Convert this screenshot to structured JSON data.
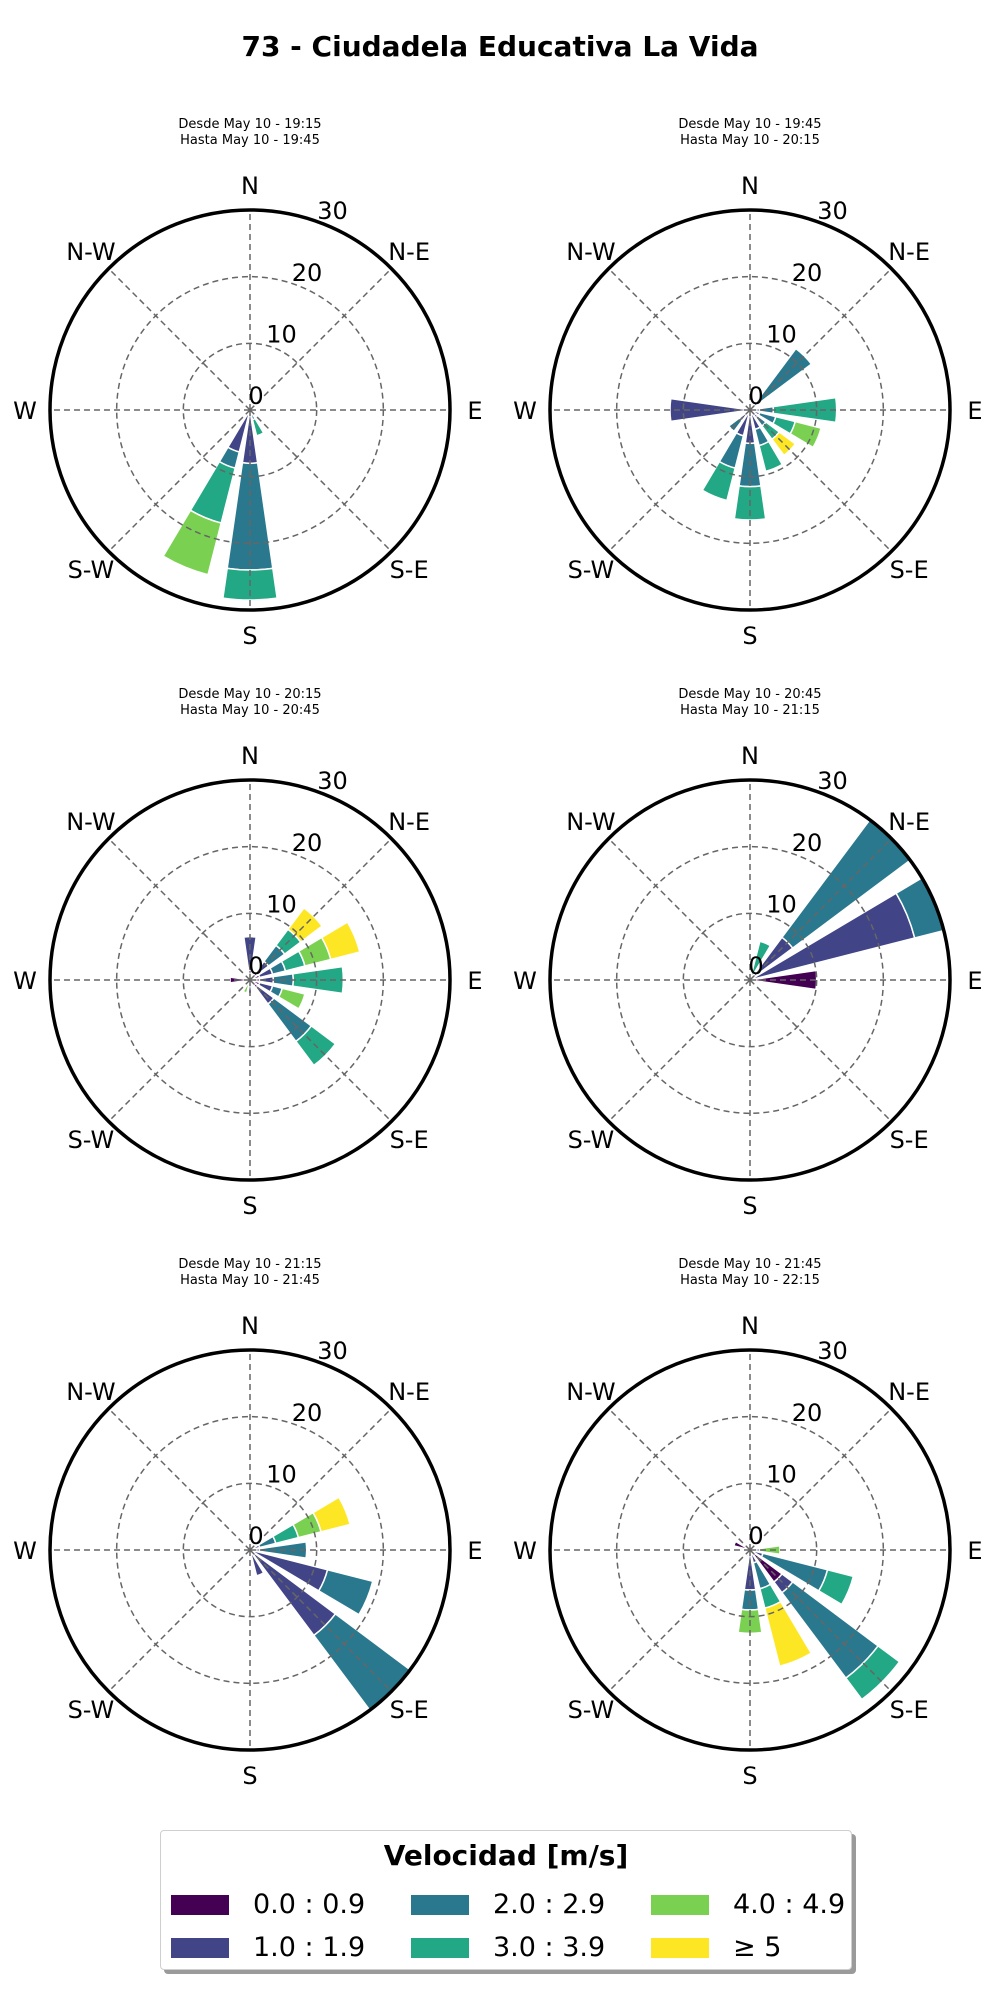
{
  "title": "73 - Ciudadela Educativa La Vida",
  "legend": {
    "title": "Velocidad [m/s]",
    "items": [
      {
        "label": "0.0 : 0.9",
        "color": "#440154"
      },
      {
        "label": "1.0 : 1.9",
        "color": "#414487"
      },
      {
        "label": "2.0 : 2.9",
        "color": "#2a788e"
      },
      {
        "label": "3.0 : 3.9",
        "color": "#22a884"
      },
      {
        "label": "4.0 : 4.9",
        "color": "#7ad151"
      },
      {
        "label": "≥ 5",
        "color": "#fde725"
      }
    ]
  },
  "chart_data": [
    {
      "type": "windrose",
      "subtitle": [
        "Desde May 10 - 19:15",
        "Hasta May 10 - 19:45"
      ],
      "direction_labels": [
        "N",
        "N-E",
        "E",
        "S-E",
        "S",
        "S-W",
        "W",
        "N-W"
      ],
      "radial_ticks": [
        0,
        10,
        20,
        30
      ],
      "rmax": 30,
      "bins": [
        "0.0 : 0.9",
        "1.0 : 1.9",
        "2.0 : 2.9",
        "3.0 : 3.9",
        "4.0 : 4.9",
        "≥ 5"
      ],
      "sectors": [
        {
          "direction": 157.5,
          "values": [
            0,
            0,
            1.5,
            2.5,
            0,
            0
          ]
        },
        {
          "direction": 180,
          "values": [
            0,
            8,
            16,
            4.5,
            0,
            0
          ]
        },
        {
          "direction": 202.5,
          "values": [
            0,
            6.5,
            2.5,
            8.5,
            8,
            0
          ]
        }
      ]
    },
    {
      "type": "windrose",
      "subtitle": [
        "Desde May 10 - 19:45",
        "Hasta May 10 - 20:15"
      ],
      "direction_labels": [
        "N",
        "N-E",
        "E",
        "S-E",
        "S",
        "S-W",
        "W",
        "N-W"
      ],
      "radial_ticks": [
        0,
        10,
        20,
        30
      ],
      "rmax": 30,
      "bins": [
        "0.0 : 0.9",
        "1.0 : 1.9",
        "2.0 : 2.9",
        "3.0 : 3.9",
        "4.0 : 4.9",
        "≥ 5"
      ],
      "sectors": [
        {
          "direction": 45,
          "values": [
            0,
            1.5,
            10,
            0,
            0,
            0
          ]
        },
        {
          "direction": 90,
          "values": [
            0,
            1.5,
            2,
            9.5,
            0,
            0
          ]
        },
        {
          "direction": 112.5,
          "values": [
            0,
            1.5,
            2.5,
            3,
            4,
            0
          ]
        },
        {
          "direction": 135,
          "values": [
            0,
            1.5,
            1.5,
            2.5,
            0,
            3
          ]
        },
        {
          "direction": 157.5,
          "values": [
            0,
            3,
            2.5,
            4,
            0,
            0
          ]
        },
        {
          "direction": 180,
          "values": [
            0,
            5,
            6.5,
            5,
            0,
            0
          ]
        },
        {
          "direction": 202.5,
          "values": [
            0,
            4,
            5,
            5,
            0,
            0
          ]
        },
        {
          "direction": 225,
          "values": [
            0,
            2,
            2,
            0,
            0,
            0
          ]
        },
        {
          "direction": 270,
          "values": [
            0,
            12,
            0,
            0,
            0,
            0
          ]
        }
      ]
    },
    {
      "type": "windrose",
      "subtitle": [
        "Desde May 10 - 20:15",
        "Hasta May 10 - 20:45"
      ],
      "direction_labels": [
        "N",
        "N-E",
        "E",
        "S-E",
        "S",
        "S-W",
        "W",
        "N-W"
      ],
      "radial_ticks": [
        0,
        10,
        20,
        30
      ],
      "rmax": 30,
      "bins": [
        "0.0 : 0.9",
        "1.0 : 1.9",
        "2.0 : 2.9",
        "3.0 : 3.9",
        "4.0 : 4.9",
        "≥ 5"
      ],
      "sectors": [
        {
          "direction": 0,
          "values": [
            1.5,
            5,
            0,
            0,
            0,
            0
          ]
        },
        {
          "direction": 45,
          "values": [
            1.5,
            2,
            3,
            3,
            0,
            4
          ]
        },
        {
          "direction": 67.5,
          "values": [
            1.5,
            2,
            2,
            3,
            4,
            4.5
          ]
        },
        {
          "direction": 90,
          "values": [
            1.5,
            2,
            3,
            7.5,
            0,
            0
          ]
        },
        {
          "direction": 112.5,
          "values": [
            1.5,
            2,
            1.5,
            0,
            3.5,
            0
          ]
        },
        {
          "direction": 135,
          "values": [
            1.5,
            3,
            7,
            4.5,
            0,
            0
          ]
        },
        {
          "direction": 180,
          "values": [
            0,
            2,
            0,
            0,
            0,
            0
          ]
        },
        {
          "direction": 202.5,
          "values": [
            0,
            0,
            0,
            0,
            2,
            0
          ]
        },
        {
          "direction": 270,
          "values": [
            3,
            0,
            0,
            0,
            0,
            0
          ]
        }
      ]
    },
    {
      "type": "windrose",
      "subtitle": [
        "Desde May 10 - 20:45",
        "Hasta May 10 - 21:15"
      ],
      "direction_labels": [
        "N",
        "N-E",
        "E",
        "S-E",
        "S",
        "S-W",
        "W",
        "N-W"
      ],
      "radial_ticks": [
        0,
        10,
        20,
        30
      ],
      "rmax": 30,
      "bins": [
        "0.0 : 0.9",
        "1.0 : 1.9",
        "2.0 : 2.9",
        "3.0 : 3.9",
        "4.0 : 4.9",
        "≥ 5"
      ],
      "sectors": [
        {
          "direction": 22.5,
          "values": [
            0,
            0,
            0,
            6,
            0,
            0
          ]
        },
        {
          "direction": 45,
          "values": [
            0,
            8,
            22,
            0,
            0,
            0
          ]
        },
        {
          "direction": 67.5,
          "values": [
            0,
            25.5,
            4.5,
            0,
            0,
            0
          ]
        },
        {
          "direction": 90,
          "values": [
            10,
            0,
            0,
            0,
            0,
            0
          ]
        }
      ]
    },
    {
      "type": "windrose",
      "subtitle": [
        "Desde May 10 - 21:15",
        "Hasta May 10 - 21:45"
      ],
      "direction_labels": [
        "N",
        "N-E",
        "E",
        "S-E",
        "S",
        "S-W",
        "W",
        "N-W"
      ],
      "radial_ticks": [
        0,
        10,
        20,
        30
      ],
      "rmax": 30,
      "bins": [
        "0.0 : 0.9",
        "1.0 : 1.9",
        "2.0 : 2.9",
        "3.0 : 3.9",
        "4.0 : 4.9",
        "≥ 5"
      ],
      "sectors": [
        {
          "direction": 67.5,
          "values": [
            0,
            1.5,
            2.5,
            3.5,
            3.5,
            4.5
          ]
        },
        {
          "direction": 90,
          "values": [
            0,
            1.5,
            7,
            0,
            0,
            0
          ]
        },
        {
          "direction": 112.5,
          "values": [
            0,
            12,
            7,
            0,
            0,
            0
          ]
        },
        {
          "direction": 135,
          "values": [
            0,
            16,
            14,
            0,
            0,
            0
          ]
        },
        {
          "direction": 157.5,
          "values": [
            0,
            4,
            0,
            0,
            0,
            0
          ]
        }
      ]
    },
    {
      "type": "windrose",
      "subtitle": [
        "Desde May 10 - 21:45",
        "Hasta May 10 - 22:15"
      ],
      "direction_labels": [
        "N",
        "N-E",
        "E",
        "S-E",
        "S",
        "S-W",
        "W",
        "N-W"
      ],
      "radial_ticks": [
        0,
        10,
        20,
        30
      ],
      "rmax": 30,
      "bins": [
        "0.0 : 0.9",
        "1.0 : 1.9",
        "2.0 : 2.9",
        "3.0 : 3.9",
        "4.0 : 4.9",
        "≥ 5"
      ],
      "sectors": [
        {
          "direction": 90,
          "values": [
            0,
            1.5,
            0,
            0,
            3,
            0
          ]
        },
        {
          "direction": 112.5,
          "values": [
            0,
            2,
            10,
            4,
            0,
            0
          ]
        },
        {
          "direction": 135,
          "values": [
            6,
            2,
            16,
            4,
            0,
            0
          ]
        },
        {
          "direction": 157.5,
          "values": [
            0,
            2,
            4,
            3,
            0,
            9
          ]
        },
        {
          "direction": 180,
          "values": [
            0,
            6,
            3,
            0,
            3.5,
            0
          ]
        },
        {
          "direction": 202.5,
          "values": [
            1,
            0,
            0,
            0,
            0,
            0
          ]
        },
        {
          "direction": 292.5,
          "values": [
            2.5,
            0,
            0,
            0,
            0,
            0
          ]
        }
      ]
    }
  ]
}
